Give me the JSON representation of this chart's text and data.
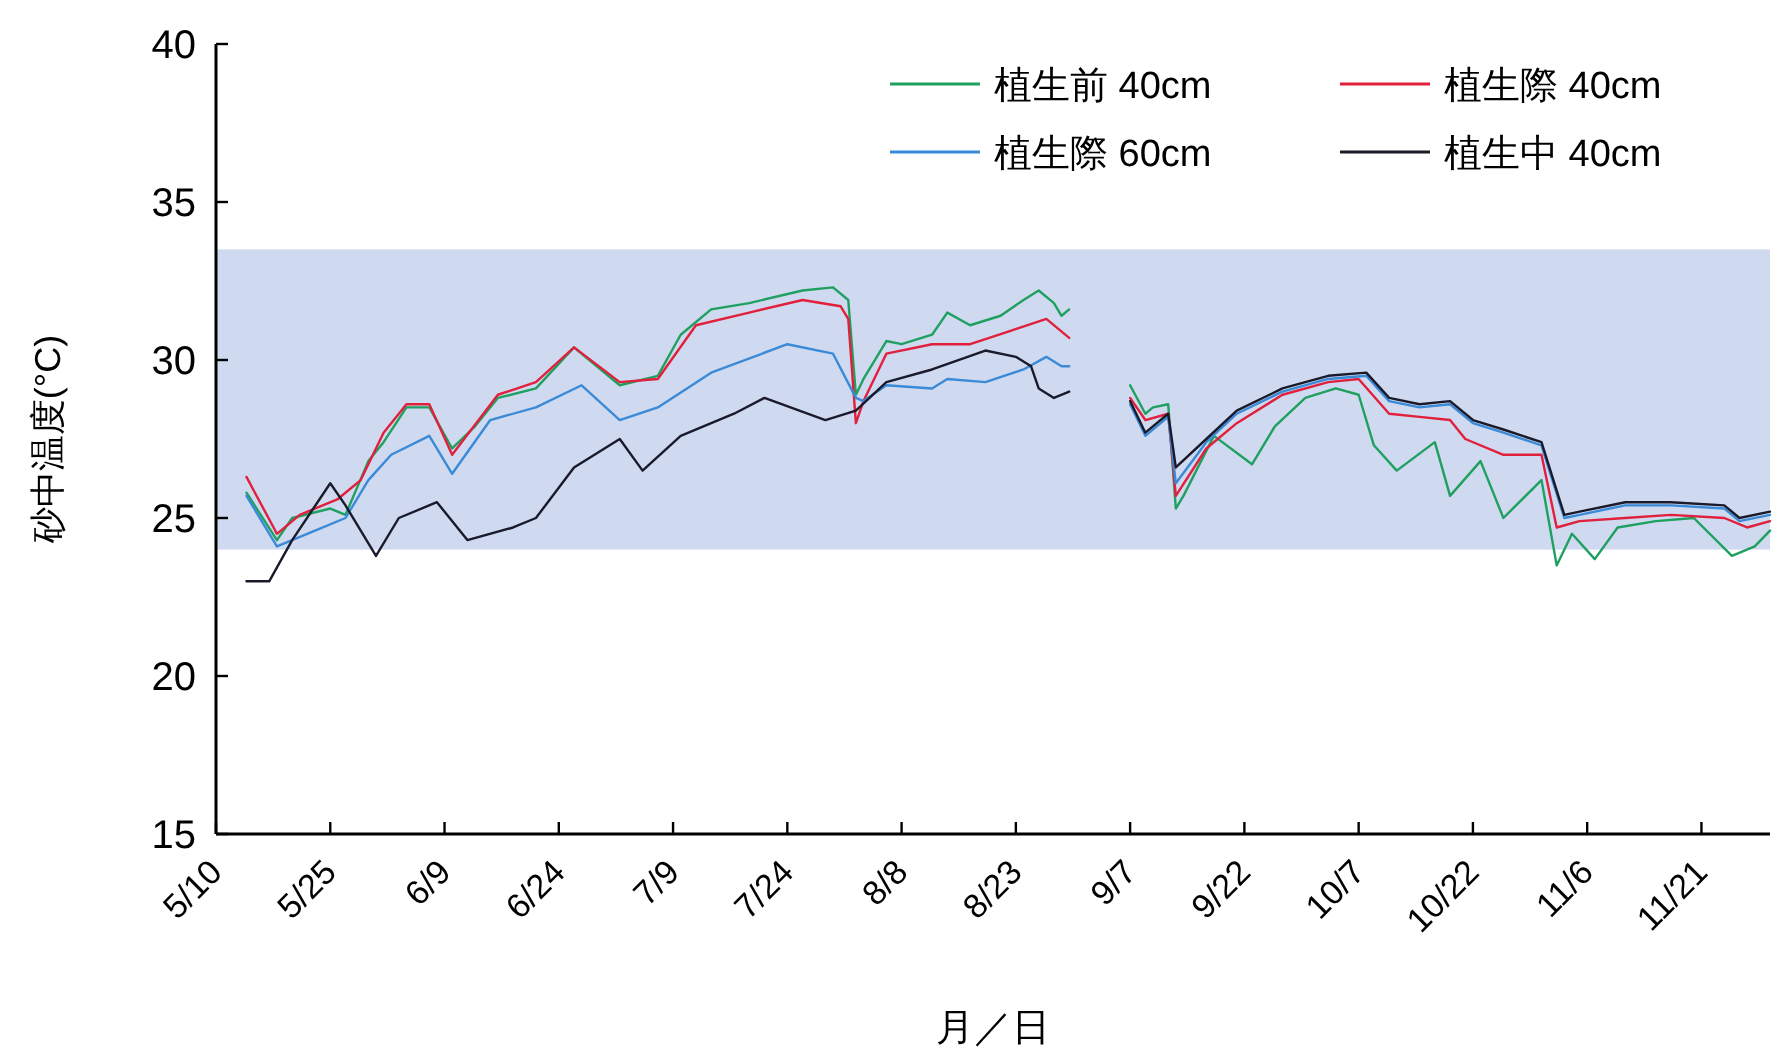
{
  "chart_data": {
    "type": "line",
    "xlabel": "月／日",
    "ylabel": "砂中温度(°C)",
    "xlim": [
      "--05-10",
      "--11-30"
    ],
    "ylim": [
      15,
      40
    ],
    "yticks": [
      15,
      20,
      25,
      30,
      35,
      40
    ],
    "xticks": [
      {
        "value": "--05-10",
        "label": "5/10"
      },
      {
        "value": "--05-25",
        "label": "5/25"
      },
      {
        "value": "--06-09",
        "label": "6/9"
      },
      {
        "value": "--06-24",
        "label": "6/24"
      },
      {
        "value": "--07-09",
        "label": "7/9"
      },
      {
        "value": "--07-24",
        "label": "7/24"
      },
      {
        "value": "--08-08",
        "label": "8/8"
      },
      {
        "value": "--08-23",
        "label": "8/23"
      },
      {
        "value": "--09-07",
        "label": "9/7"
      },
      {
        "value": "--09-22",
        "label": "9/22"
      },
      {
        "value": "--10-07",
        "label": "10/7"
      },
      {
        "value": "--10-22",
        "label": "10/22"
      },
      {
        "value": "--11-06",
        "label": "11/6"
      },
      {
        "value": "--11-21",
        "label": "11/21"
      }
    ],
    "bands": [
      {
        "axis": "y",
        "from": 24,
        "to": 33.5,
        "color": "#cfdaf0"
      }
    ],
    "grid": false,
    "legend": "top right",
    "line_style": "solid",
    "marker": "none",
    "series": [
      {
        "name": "植生前 40cm",
        "color": "#1fa060",
        "x": [
          "--05-14",
          "--05-18",
          "--05-20",
          "--05-25",
          "--05-27",
          "--05-30",
          "--06-01",
          "--06-04",
          "--06-07",
          "--06-10",
          "--06-13",
          "--06-16",
          "--06-21",
          "--06-26",
          "--06-28",
          "--07-02",
          "--07-07",
          "--07-10",
          "--07-14",
          "--07-19",
          "--07-26",
          "--07-30",
          "--08-01",
          "--08-02",
          "--08-03",
          "--08-06",
          "--08-08",
          "--08-12",
          "--08-14",
          "--08-17",
          "--08-21",
          "--08-24",
          "--08-26",
          "--08-28",
          "--08-29",
          "--08-30",
          "--09-03",
          "--09-07",
          "--09-09",
          "--09-10",
          "--09-12",
          "--09-13",
          "--09-14",
          "--09-18",
          "--09-23",
          "--09-26",
          "--09-30",
          "--10-04",
          "--10-07",
          "--10-09",
          "--10-12",
          "--10-17",
          "--10-19",
          "--10-23",
          "--10-26",
          "--10-31",
          "--11-02",
          "--11-04",
          "--11-07",
          "--11-10",
          "--11-15",
          "--11-20",
          "--11-25",
          "--11-28",
          "--11-30"
        ],
        "values": [
          25.8,
          24.3,
          25.0,
          25.3,
          25.1,
          26.8,
          27.4,
          28.5,
          28.5,
          27.2,
          27.9,
          28.8,
          29.1,
          30.4,
          30.0,
          29.2,
          29.5,
          30.8,
          31.6,
          31.8,
          32.2,
          32.3,
          31.9,
          28.9,
          29.4,
          30.6,
          30.5,
          30.8,
          31.5,
          31.1,
          31.4,
          31.9,
          32.2,
          31.8,
          31.4,
          31.6,
          null,
          29.2,
          28.3,
          28.5,
          28.6,
          25.3,
          25.7,
          27.6,
          26.7,
          27.9,
          28.8,
          29.1,
          28.9,
          27.3,
          26.5,
          27.4,
          25.7,
          26.8,
          25.0,
          26.2,
          23.5,
          24.5,
          23.7,
          24.7,
          24.9,
          25.0,
          23.8,
          24.1,
          24.6
        ]
      },
      {
        "name": "植生際 40cm",
        "color": "#e0203c",
        "x": [
          "--05-14",
          "--05-18",
          "--05-21",
          "--05-26",
          "--05-29",
          "--06-01",
          "--06-04",
          "--06-07",
          "--06-10",
          "--06-16",
          "--06-21",
          "--06-26",
          "--07-02",
          "--07-07",
          "--07-12",
          "--07-19",
          "--07-26",
          "--07-31",
          "--08-01",
          "--08-02",
          "--08-03",
          "--08-06",
          "--08-12",
          "--08-17",
          "--08-22",
          "--08-27",
          "--08-30",
          "--09-03",
          "--09-07",
          "--09-09",
          "--09-12",
          "--09-13",
          "--09-17",
          "--09-21",
          "--09-27",
          "--10-03",
          "--10-07",
          "--10-11",
          "--10-15",
          "--10-19",
          "--10-21",
          "--10-26",
          "--10-31",
          "--11-02",
          "--11-05",
          "--11-11",
          "--11-17",
          "--11-24",
          "--11-27",
          "--11-30"
        ],
        "values": [
          26.3,
          24.5,
          25.1,
          25.6,
          26.2,
          27.7,
          28.6,
          28.6,
          27.0,
          28.9,
          29.3,
          30.4,
          29.3,
          29.4,
          31.1,
          31.5,
          31.9,
          31.7,
          31.3,
          28.0,
          28.7,
          30.2,
          30.5,
          30.5,
          30.9,
          31.3,
          30.7,
          null,
          28.8,
          28.1,
          28.3,
          25.7,
          27.2,
          28.0,
          28.9,
          29.3,
          29.4,
          28.3,
          28.2,
          28.1,
          27.5,
          27.0,
          27.0,
          24.7,
          24.9,
          25.0,
          25.1,
          25.0,
          24.7,
          24.9
        ]
      },
      {
        "name": "植生際 60cm",
        "color": "#3a8ad8",
        "x": [
          "--05-14",
          "--05-18",
          "--05-23",
          "--05-27",
          "--05-30",
          "--06-02",
          "--06-07",
          "--06-10",
          "--06-15",
          "--06-21",
          "--06-27",
          "--07-02",
          "--07-07",
          "--07-14",
          "--07-24",
          "--07-30",
          "--08-02",
          "--08-03",
          "--08-06",
          "--08-12",
          "--08-14",
          "--08-19",
          "--08-24",
          "--08-27",
          "--08-29",
          "--08-30",
          "--09-03",
          "--09-07",
          "--09-09",
          "--09-12",
          "--09-13",
          "--09-17",
          "--09-21",
          "--09-27",
          "--10-03",
          "--10-08",
          "--10-11",
          "--10-15",
          "--10-19",
          "--10-22",
          "--10-26",
          "--10-31",
          "--11-03",
          "--11-05",
          "--11-11",
          "--11-17",
          "--11-24",
          "--11-26",
          "--11-30"
        ],
        "values": [
          25.7,
          24.1,
          24.6,
          25.0,
          26.2,
          27.0,
          27.6,
          26.4,
          28.1,
          28.5,
          29.2,
          28.1,
          28.5,
          29.6,
          30.5,
          30.2,
          28.8,
          28.7,
          29.2,
          29.1,
          29.4,
          29.3,
          29.7,
          30.1,
          29.8,
          29.8,
          null,
          28.6,
          27.6,
          28.2,
          26.1,
          27.4,
          28.3,
          29.0,
          29.4,
          29.5,
          28.7,
          28.5,
          28.6,
          28.0,
          27.7,
          27.3,
          25.0,
          25.1,
          25.4,
          25.4,
          25.3,
          24.9,
          25.1
        ]
      },
      {
        "name": "植生中 40cm",
        "color": "#1a1a2a",
        "x": [
          "--05-14",
          "--05-17",
          "--05-20",
          "--05-25",
          "--05-27",
          "--05-31",
          "--06-03",
          "--06-08",
          "--06-12",
          "--06-18",
          "--06-21",
          "--06-26",
          "--07-02",
          "--07-05",
          "--07-10",
          "--07-17",
          "--07-21",
          "--07-29",
          "--08-02",
          "--08-06",
          "--08-12",
          "--08-19",
          "--08-23",
          "--08-25",
          "--08-26",
          "--08-28",
          "--08-30",
          "--09-03",
          "--09-07",
          "--09-09",
          "--09-12",
          "--09-13",
          "--09-17",
          "--09-21",
          "--09-27",
          "--10-03",
          "--10-08",
          "--10-11",
          "--10-15",
          "--10-19",
          "--10-22",
          "--10-26",
          "--10-31",
          "--11-03",
          "--11-05",
          "--11-11",
          "--11-17",
          "--11-24",
          "--11-26",
          "--11-30"
        ],
        "values": [
          23.0,
          23.0,
          24.3,
          26.1,
          25.4,
          23.8,
          25.0,
          25.5,
          24.3,
          24.7,
          25.0,
          26.6,
          27.5,
          26.5,
          27.6,
          28.3,
          28.8,
          28.1,
          28.4,
          29.3,
          29.7,
          30.3,
          30.1,
          29.8,
          29.1,
          28.8,
          29.0,
          null,
          28.7,
          27.7,
          28.3,
          26.6,
          27.5,
          28.4,
          29.1,
          29.5,
          29.6,
          28.8,
          28.6,
          28.7,
          28.1,
          27.8,
          27.4,
          25.1,
          25.2,
          25.5,
          25.5,
          25.4,
          25.0,
          25.2
        ]
      }
    ]
  }
}
